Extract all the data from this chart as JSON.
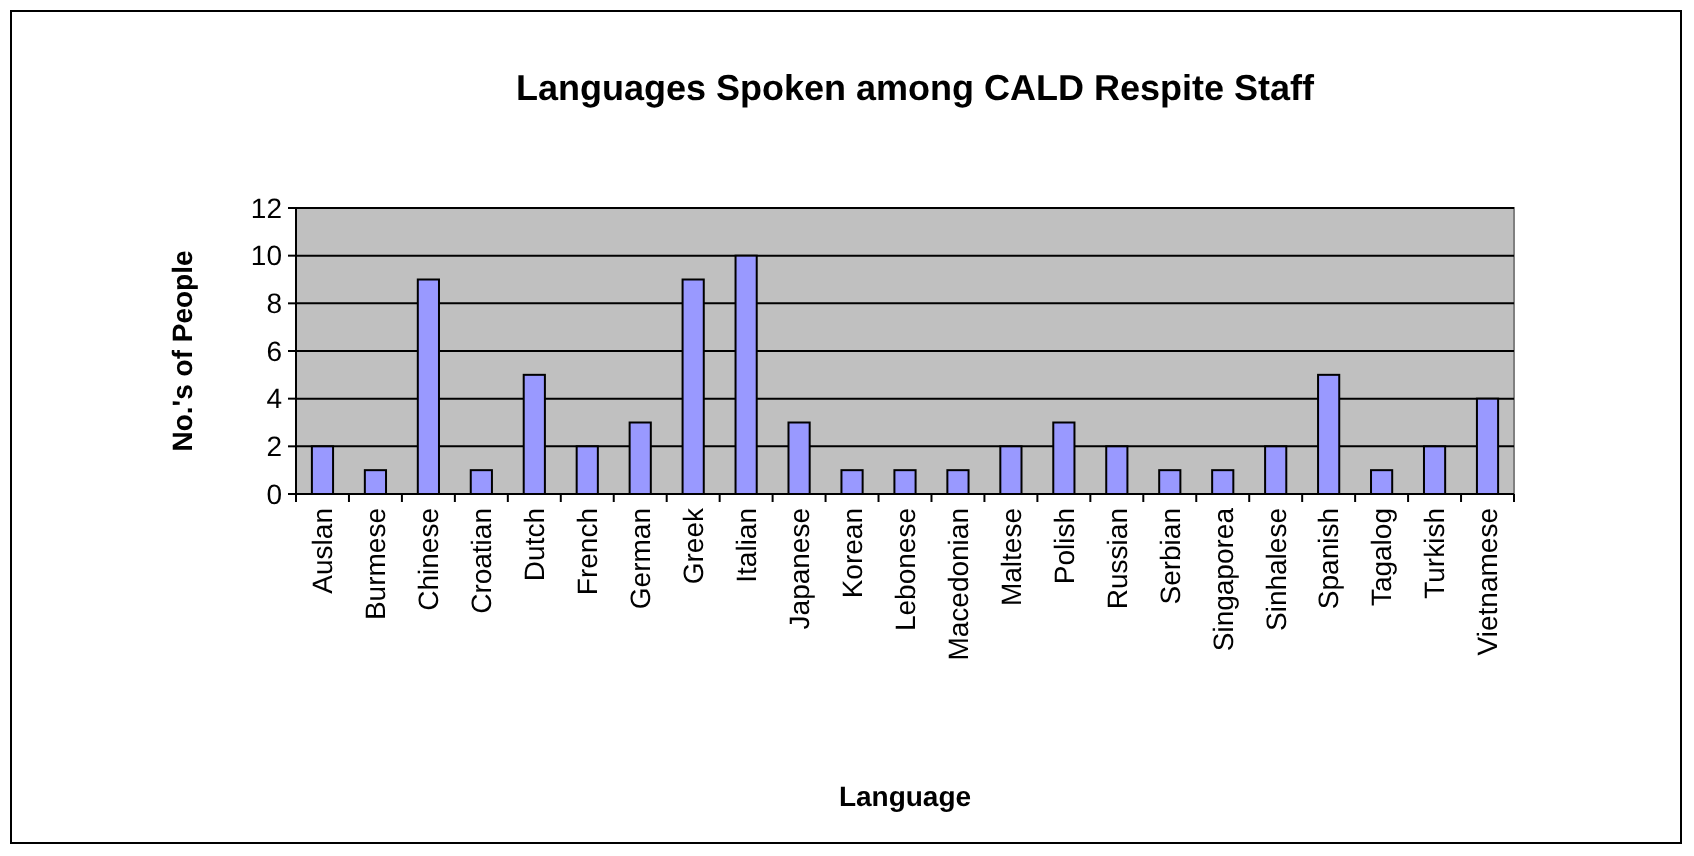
{
  "chart_data": {
    "type": "bar",
    "title": "Languages Spoken among CALD Respite Staff",
    "xlabel": "Language",
    "ylabel": "No.'s of People",
    "categories": [
      "Auslan",
      "Burmese",
      "Chinese",
      "Croatian",
      "Dutch",
      "French",
      "German",
      "Greek",
      "Italian",
      "Japanese",
      "Korean",
      "Lebonese",
      "Macedonian",
      "Maltese",
      "Polish",
      "Russian",
      "Serbian",
      "Singaporea",
      "Sinhalese",
      "Spanish",
      "Tagalog",
      "Turkish",
      "Vietnamese"
    ],
    "values": [
      2,
      1,
      9,
      1,
      5,
      2,
      3,
      9,
      10,
      3,
      1,
      1,
      1,
      2,
      3,
      2,
      1,
      1,
      2,
      5,
      1,
      2,
      4
    ],
    "color": "#9999ff",
    "ylim": [
      0,
      12
    ],
    "yticks": [
      0,
      2,
      4,
      6,
      8,
      10,
      12
    ],
    "grid": "y"
  }
}
